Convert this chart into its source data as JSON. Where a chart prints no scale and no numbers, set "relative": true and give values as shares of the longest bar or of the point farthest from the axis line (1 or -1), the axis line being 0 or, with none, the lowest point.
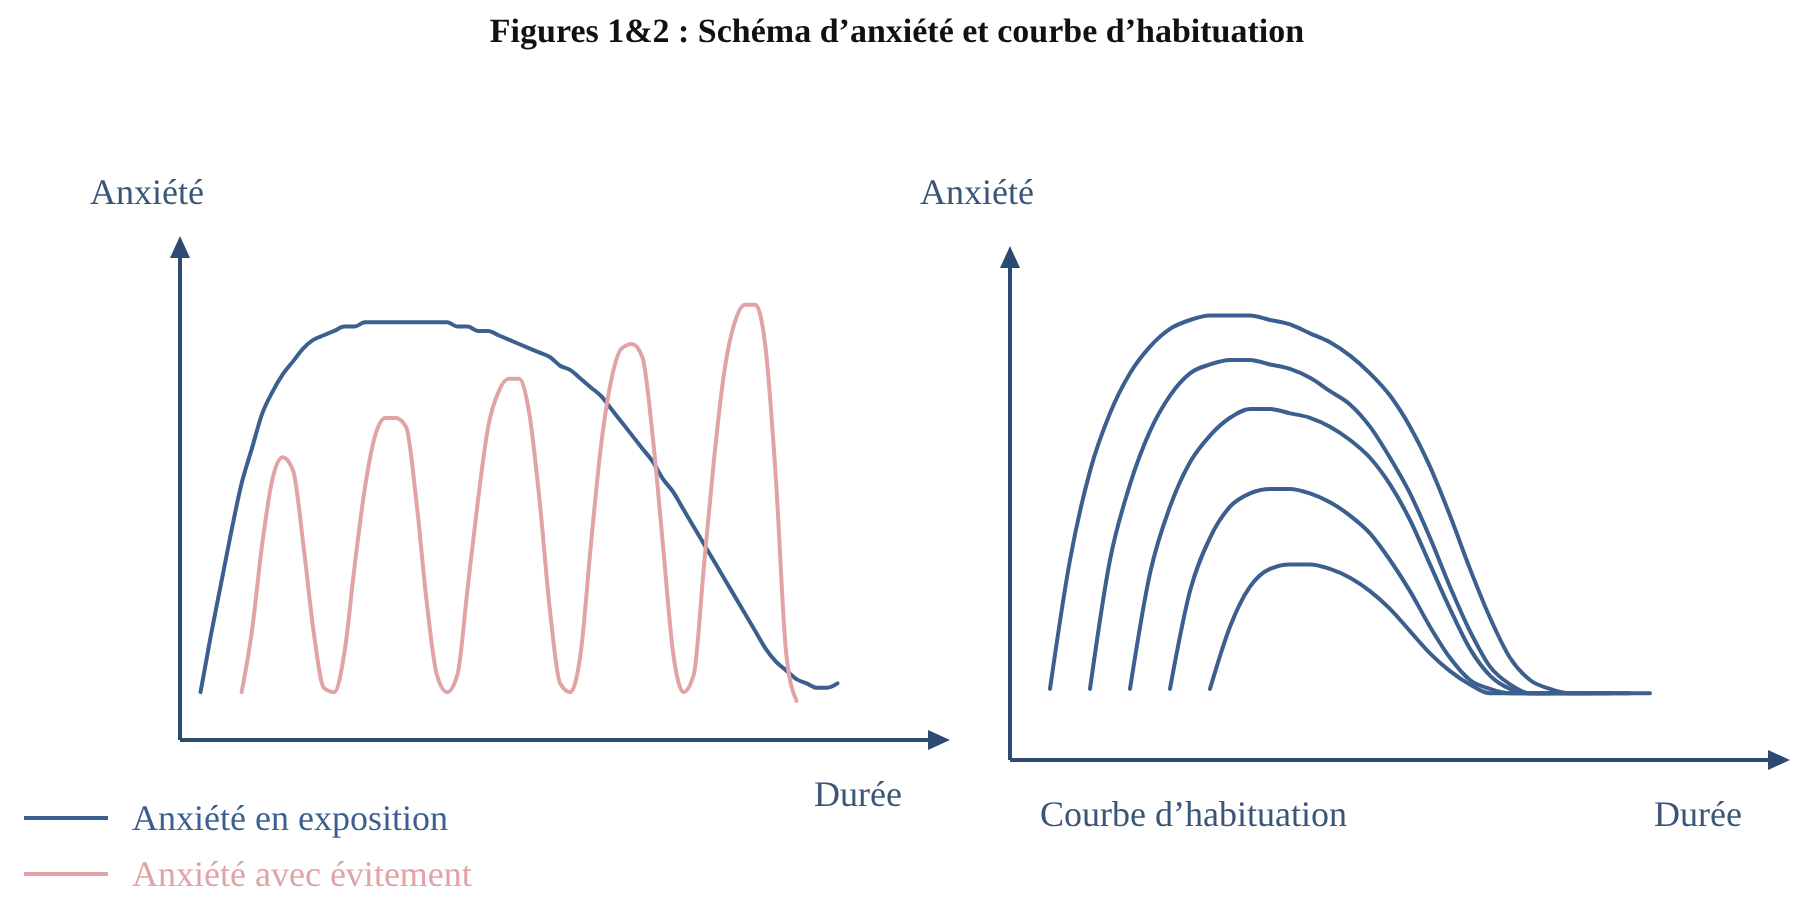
{
  "chart_data": [
    {
      "type": "line",
      "title": "Figures 1&2 : Schéma d’anxiété et courbe d’habituation",
      "ylabel": "Anxiété",
      "xlabel": "Durée",
      "relative": true,
      "legend": "bottom left",
      "categories": [
        null,
        null,
        null,
        null,
        null,
        null,
        null,
        null,
        null,
        null,
        null,
        null,
        null,
        null,
        null,
        null,
        null,
        null,
        null,
        null,
        null,
        null,
        null,
        null,
        null,
        null,
        null,
        null,
        null,
        null,
        null,
        null,
        null,
        null,
        null,
        null,
        null,
        null,
        null,
        null,
        null,
        null,
        null,
        null,
        null,
        null,
        null,
        null,
        null,
        null,
        null,
        null,
        null,
        null,
        null,
        null,
        null,
        null,
        null,
        null,
        null,
        null,
        null,
        null,
        null,
        null,
        null,
        null,
        null,
        null,
        null,
        null,
        null,
        null
      ],
      "series": [
        {
          "name": "Anxiété en exposition",
          "color": "#3b5f8e",
          "values": [
            null,
            null,
            0.11,
            0.24,
            0.36,
            0.48,
            0.59,
            0.67,
            0.75,
            0.8,
            0.84,
            0.87,
            0.9,
            0.92,
            0.93,
            0.94,
            0.95,
            0.95,
            0.96,
            0.96,
            0.96,
            0.96,
            0.96,
            0.96,
            0.96,
            0.96,
            0.96,
            0.95,
            0.95,
            0.94,
            0.94,
            0.93,
            0.92,
            0.91,
            0.9,
            0.89,
            0.88,
            0.86,
            0.85,
            0.83,
            0.81,
            0.79,
            0.76,
            0.73,
            0.7,
            0.67,
            0.64,
            0.6,
            0.57,
            0.53,
            0.49,
            0.45,
            0.41,
            0.37,
            0.33,
            0.29,
            0.25,
            0.21,
            0.18,
            0.16,
            0.14,
            0.13,
            0.12,
            0.12,
            0.13,
            null,
            null,
            null,
            null,
            null,
            null,
            null,
            null,
            null
          ]
        },
        {
          "name": "Anxiété avec évitement",
          "color": "#e0a3a6",
          "values": [
            null,
            null,
            null,
            null,
            null,
            null,
            0.11,
            0.25,
            0.45,
            0.6,
            0.65,
            0.62,
            0.45,
            0.25,
            0.12,
            0.11,
            0.2,
            0.4,
            0.58,
            0.7,
            0.74,
            0.74,
            0.72,
            0.55,
            0.32,
            0.15,
            0.11,
            0.15,
            0.35,
            0.55,
            0.72,
            0.8,
            0.83,
            0.83,
            0.75,
            0.55,
            0.3,
            0.13,
            0.11,
            0.2,
            0.45,
            0.68,
            0.83,
            0.9,
            0.91,
            0.88,
            0.7,
            0.45,
            0.2,
            0.11,
            0.15,
            0.4,
            0.65,
            0.85,
            0.96,
            1.0,
            1.0,
            0.9,
            0.6,
            0.2,
            0.09,
            null,
            null,
            null,
            null,
            null,
            null,
            null,
            null,
            null,
            null,
            null,
            null,
            null
          ]
        }
      ]
    },
    {
      "type": "line",
      "ylabel": "Anxiété",
      "xlabel": "Durée",
      "annotations": [
        "Courbe d’habituation"
      ],
      "relative": true,
      "categories": [
        null,
        null,
        null,
        null,
        null,
        null,
        null,
        null,
        null,
        null,
        null,
        null,
        null,
        null,
        null,
        null,
        null,
        null,
        null,
        null,
        null,
        null,
        null,
        null,
        null,
        null,
        null,
        null,
        null,
        null,
        null,
        null,
        null,
        null,
        null,
        null,
        null,
        null,
        null
      ],
      "series": [
        {
          "color": "#3b5f8e",
          "values": [
            null,
            null,
            0.16,
            0.45,
            0.65,
            0.78,
            0.87,
            0.93,
            0.97,
            0.99,
            1.0,
            1.0,
            1.0,
            0.99,
            0.98,
            0.96,
            0.94,
            0.91,
            0.87,
            0.82,
            0.75,
            0.66,
            0.55,
            0.43,
            0.32,
            0.23,
            0.18,
            0.16,
            0.15,
            0.15,
            0.15,
            0.15,
            0.15,
            null,
            null,
            null,
            null,
            null,
            null
          ]
        },
        {
          "color": "#3b5f8e",
          "values": [
            null,
            null,
            null,
            null,
            0.16,
            0.45,
            0.62,
            0.74,
            0.82,
            0.87,
            0.89,
            0.9,
            0.9,
            0.89,
            0.88,
            0.86,
            0.83,
            0.8,
            0.75,
            0.68,
            0.6,
            0.5,
            0.39,
            0.29,
            0.21,
            0.17,
            0.15,
            0.15,
            0.15,
            0.15,
            0.15,
            0.15,
            null,
            null,
            null,
            null,
            null,
            null,
            null
          ]
        },
        {
          "color": "#3b5f8e",
          "values": [
            null,
            null,
            null,
            null,
            null,
            null,
            0.16,
            0.42,
            0.57,
            0.67,
            0.73,
            0.77,
            0.79,
            0.79,
            0.78,
            0.77,
            0.75,
            0.72,
            0.68,
            0.62,
            0.54,
            0.44,
            0.34,
            0.25,
            0.19,
            0.16,
            0.15,
            0.15,
            0.15,
            0.15,
            0.15,
            null,
            null,
            null,
            null,
            null,
            null,
            null,
            null
          ]
        },
        {
          "color": "#3b5f8e",
          "values": [
            null,
            null,
            null,
            null,
            null,
            null,
            null,
            null,
            0.16,
            0.38,
            0.5,
            0.57,
            0.6,
            0.61,
            0.61,
            0.6,
            0.58,
            0.55,
            0.51,
            0.45,
            0.38,
            0.3,
            0.23,
            0.18,
            0.16,
            0.15,
            0.15,
            0.15,
            0.15,
            0.15,
            null,
            null,
            null,
            null,
            null,
            null,
            null,
            null,
            null
          ]
        },
        {
          "color": "#3b5f8e",
          "values": [
            null,
            null,
            null,
            null,
            null,
            null,
            null,
            null,
            null,
            null,
            0.16,
            0.3,
            0.39,
            0.43,
            0.44,
            0.44,
            0.43,
            0.41,
            0.38,
            0.34,
            0.29,
            0.24,
            0.2,
            0.17,
            0.15,
            0.15,
            0.15,
            0.15,
            null,
            null,
            null,
            null,
            null,
            null,
            null,
            null,
            null,
            null,
            null
          ]
        }
      ]
    }
  ]
}
